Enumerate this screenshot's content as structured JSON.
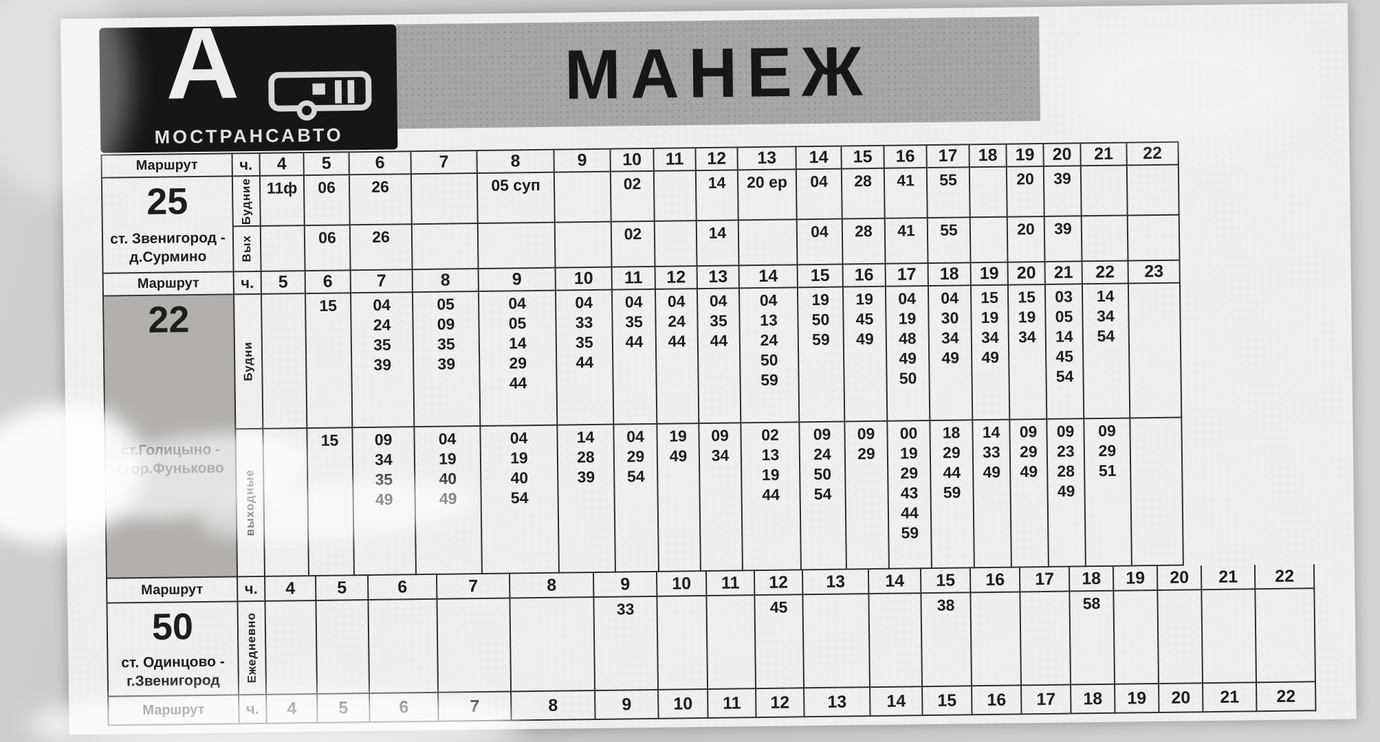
{
  "title": "МАНЕЖ",
  "logo": {
    "letter": "А",
    "brand": "МОСТРАНСАВТО"
  },
  "headers": {
    "route": "Маршрут",
    "hour": "ч."
  },
  "colors": {
    "paper": "#f1efed",
    "banner_gray": "#a6a6a6",
    "logo_black": "#161616",
    "ink": "#1d1d1d",
    "route22_cell_gray": "#b3b0ac"
  },
  "sections": [
    {
      "route_number": "25",
      "station": "ст. Звенигород - д.Сурмино",
      "hours": [
        "4",
        "5",
        "6",
        "7",
        "8",
        "9",
        "10",
        "11",
        "12",
        "13",
        "14",
        "15",
        "16",
        "17",
        "18",
        "19",
        "20",
        "21",
        "22"
      ],
      "day_rows": [
        {
          "label": "Будние",
          "times": [
            [
              "11ф"
            ],
            [
              "06"
            ],
            [
              "26"
            ],
            [],
            [
              "05 суп"
            ],
            [],
            [
              "02"
            ],
            [],
            [
              "14"
            ],
            [
              "20 ер"
            ],
            [
              "04"
            ],
            [
              "28"
            ],
            [
              "41"
            ],
            [
              "55"
            ],
            [],
            [
              "20"
            ],
            [
              "39"
            ],
            [],
            []
          ]
        },
        {
          "label": "Вых",
          "times": [
            [],
            [
              "06"
            ],
            [
              "26"
            ],
            [],
            [],
            [],
            [
              "02"
            ],
            [],
            [
              "14"
            ],
            [],
            [
              "04"
            ],
            [
              "28"
            ],
            [
              "41"
            ],
            [
              "55"
            ],
            [],
            [
              "20"
            ],
            [
              "39"
            ],
            [],
            []
          ]
        }
      ]
    },
    {
      "route_number": "22",
      "station": "ст.Голицыно - сгор.Фуньково",
      "hours": [
        "5",
        "6",
        "7",
        "8",
        "9",
        "10",
        "11",
        "12",
        "13",
        "14",
        "15",
        "16",
        "17",
        "18",
        "19",
        "20",
        "21",
        "22",
        "23"
      ],
      "day_rows": [
        {
          "label": "Будни",
          "times": [
            [],
            [
              "15"
            ],
            [
              "04",
              "24",
              "35",
              "39"
            ],
            [
              "05",
              "09",
              "35",
              "39"
            ],
            [
              "04",
              "05",
              "14",
              "29",
              "44"
            ],
            [
              "04",
              "33",
              "35",
              "44"
            ],
            [
              "04",
              "35",
              "44"
            ],
            [
              "04",
              "24",
              "44"
            ],
            [
              "04",
              "35",
              "44"
            ],
            [
              "04",
              "13",
              "24",
              "50",
              "59"
            ],
            [
              "19",
              "50",
              "59"
            ],
            [
              "19",
              "45",
              "49"
            ],
            [
              "04",
              "19",
              "48",
              "49",
              "50"
            ],
            [
              "04",
              "30",
              "34",
              "49"
            ],
            [
              "15",
              "19",
              "34",
              "49"
            ],
            [
              "15",
              "19",
              "34"
            ],
            [
              "03",
              "05",
              "14",
              "45",
              "54"
            ],
            [
              "14",
              "34",
              "54"
            ],
            []
          ]
        },
        {
          "label": "выходные",
          "times": [
            [],
            [
              "15"
            ],
            [
              "09",
              "34",
              "35",
              "49"
            ],
            [
              "04",
              "19",
              "40",
              "49"
            ],
            [
              "04",
              "19",
              "40",
              "54"
            ],
            [
              "14",
              "28",
              "39"
            ],
            [
              "04",
              "29",
              "54"
            ],
            [
              "19",
              "49"
            ],
            [
              "09",
              "34"
            ],
            [
              "02",
              "13",
              "19",
              "44"
            ],
            [
              "09",
              "24",
              "50",
              "54"
            ],
            [
              "09",
              "29"
            ],
            [
              "00",
              "19",
              "29",
              "43",
              "44",
              "59"
            ],
            [
              "18",
              "29",
              "44",
              "59"
            ],
            [
              "14",
              "33",
              "49"
            ],
            [
              "09",
              "29",
              "49"
            ],
            [
              "09",
              "23",
              "28",
              "49"
            ],
            [
              "09",
              "29",
              "51"
            ],
            []
          ]
        }
      ]
    },
    {
      "route_number": "50",
      "station": "ст. Одинцово - г.Звенигород",
      "hours": [
        "4",
        "5",
        "6",
        "7",
        "8",
        "9",
        "10",
        "11",
        "12",
        "13",
        "14",
        "15",
        "16",
        "17",
        "18",
        "19",
        "20",
        "21",
        "22"
      ],
      "day_rows": [
        {
          "label": "Ежедневно",
          "times": [
            [],
            [],
            [],
            [],
            [],
            [
              "33"
            ],
            [],
            [],
            [
              "45"
            ],
            [],
            [],
            [
              "38"
            ],
            [],
            [],
            [
              "58"
            ],
            [],
            [],
            [],
            []
          ]
        }
      ]
    }
  ],
  "footer_header": {
    "route": "Маршрут",
    "hour": "ч.",
    "hours": [
      "4",
      "5",
      "6",
      "7",
      "8",
      "9",
      "10",
      "11",
      "12",
      "13",
      "14",
      "15",
      "16",
      "17",
      "18",
      "19",
      "20",
      "21",
      "22"
    ]
  }
}
